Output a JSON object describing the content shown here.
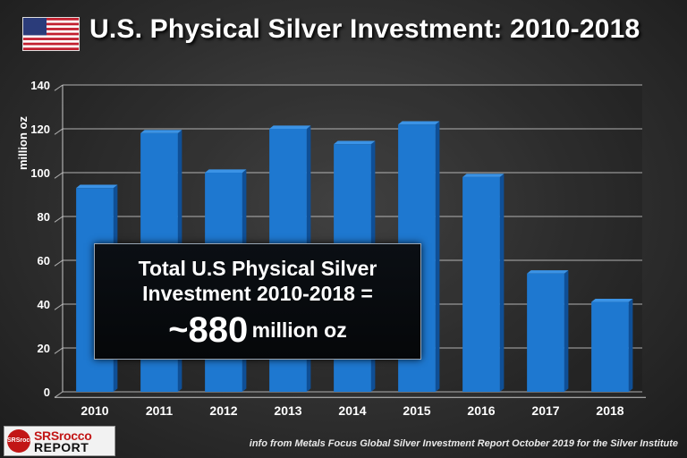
{
  "header": {
    "title": "U.S. Physical Silver Investment: 2010-2018",
    "flag_icon": "us-flag-icon"
  },
  "callout": {
    "line1": "Total U.S Physical Silver",
    "line2": "Investment 2010-2018 =",
    "tilde": "~",
    "value": "880",
    "unit": "million oz"
  },
  "logo": {
    "badge": "SRSrocco",
    "line1": "SRSrocco",
    "line2": "REPORT"
  },
  "source": "info from Metals Focus Global Silver Investment Report October 2019 for the Silver Institute",
  "colors": {
    "bar": "#1e78d0",
    "bar_side": "#0f4f96",
    "grid": "#c8c8c8"
  },
  "chart_data": {
    "type": "bar",
    "title": "U.S. Physical Silver Investment: 2010-2018",
    "xlabel": "",
    "ylabel": "million oz",
    "ylim": [
      0,
      140
    ],
    "yticks": [
      0,
      20,
      40,
      60,
      80,
      100,
      120,
      140
    ],
    "grid": true,
    "categories": [
      "2010",
      "2011",
      "2012",
      "2013",
      "2014",
      "2015",
      "2016",
      "2017",
      "2018"
    ],
    "values": [
      93,
      118,
      100,
      120,
      113,
      122,
      98,
      54,
      41
    ]
  }
}
